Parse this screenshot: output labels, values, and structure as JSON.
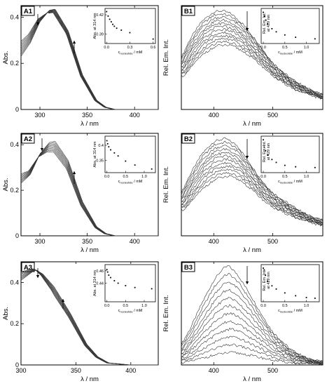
{
  "figure": {
    "chart_data": [
      {
        "panel_label": "A1",
        "type": "line",
        "xlabel": "λ / nm",
        "ylabel": "Abs.",
        "xlim": [
          280,
          425
        ],
        "ylim": [
          0,
          0.45
        ],
        "xticks": [
          300,
          350,
          400
        ],
        "yticks": [
          0,
          0.2,
          0.4
        ],
        "peak": 316,
        "top": [
          0.435,
          0.42
        ],
        "curve_count": 10,
        "series": [
          {
            "x": [
              280,
              290,
              300,
              310,
              316,
              330,
              345,
              360,
              370,
              380,
              400,
              425
            ],
            "y": [
              0.23,
              0.29,
              0.38,
              0.43,
              0.435,
              0.34,
              0.15,
              0.04,
              0.01,
              0.0,
              0.0,
              0.0
            ]
          }
        ],
        "inset": {
          "ylabel": "Abs. at 314 nm",
          "xlabel": "c nucleotide / mM",
          "xlim": [
            -0.02,
            0.63
          ],
          "ylim": [
            0.375,
            0.43
          ],
          "xticks": [
            0.0,
            0.3,
            0.6
          ],
          "yticks": [
            0.39,
            0.42
          ],
          "points": [
            [
              0.0,
              0.425
            ],
            [
              0.02,
              0.418
            ],
            [
              0.04,
              0.413
            ],
            [
              0.06,
              0.409
            ],
            [
              0.08,
              0.405
            ],
            [
              0.1,
              0.402
            ],
            [
              0.13,
              0.399
            ],
            [
              0.19,
              0.396
            ],
            [
              0.3,
              0.392
            ],
            [
              0.6,
              0.382
            ]
          ]
        }
      },
      {
        "panel_label": "B1",
        "type": "line",
        "xlabel": "λ / nm",
        "ylabel": "Rel. Em. Int.",
        "xlim": [
          345,
          585
        ],
        "ylim": [
          0,
          1.0
        ],
        "xticks": [
          400,
          500
        ],
        "yticks": [],
        "peak": 415,
        "top": [
          0.95,
          0.62
        ],
        "curve_count": 12,
        "series": [
          {
            "x": [
              345,
              360,
              380,
              400,
              415,
              430,
              450,
              470,
              500,
              530,
              560,
              585
            ],
            "y": [
              0.5,
              0.68,
              0.85,
              0.94,
              0.95,
              0.92,
              0.82,
              0.68,
              0.45,
              0.3,
              0.2,
              0.14
            ]
          }
        ],
        "inset": {
          "ylabel": "Rel. Em. Int. at 429 nm",
          "xlabel": "c nucleotide / mM",
          "xlim": [
            -0.05,
            1.3
          ],
          "ylim": [
            0.55,
            1.0
          ],
          "xticks": [
            0.0,
            0.5,
            1.0
          ],
          "yticks": [],
          "points": [
            [
              0.0,
              0.95
            ],
            [
              0.03,
              0.9
            ],
            [
              0.06,
              0.85
            ],
            [
              0.1,
              0.8
            ],
            [
              0.2,
              0.74
            ],
            [
              0.3,
              0.7
            ],
            [
              0.5,
              0.66
            ],
            [
              0.75,
              0.63
            ],
            [
              1.2,
              0.61
            ]
          ]
        }
      },
      {
        "panel_label": "A2",
        "type": "line",
        "xlabel": "λ / nm",
        "ylabel": "Abs.",
        "xlim": [
          280,
          425
        ],
        "ylim": [
          0,
          0.45
        ],
        "xticks": [
          300,
          350,
          400
        ],
        "yticks": [
          0,
          0.2,
          0.4
        ],
        "peak": 316,
        "top": [
          0.415,
          0.37
        ],
        "curve_count": 9,
        "series": [
          {
            "x": [
              280,
              290,
              300,
              310,
              316,
              330,
              345,
              360,
              370,
              380,
              400,
              425
            ],
            "y": [
              0.23,
              0.27,
              0.36,
              0.41,
              0.415,
              0.33,
              0.15,
              0.04,
              0.01,
              0.0,
              0.0,
              0.0
            ]
          }
        ],
        "inset": {
          "ylabel": "Abs. at 314 nm",
          "xlabel": "c nucleotide / mM",
          "xlim": [
            -0.05,
            1.3
          ],
          "ylim": [
            0.31,
            0.43
          ],
          "xticks": [
            0.0,
            0.5,
            1.0
          ],
          "yticks": [
            0.35,
            0.4
          ],
          "points": [
            [
              0.0,
              0.415
            ],
            [
              0.02,
              0.405
            ],
            [
              0.05,
              0.395
            ],
            [
              0.1,
              0.385
            ],
            [
              0.2,
              0.375
            ],
            [
              0.3,
              0.365
            ],
            [
              0.5,
              0.348
            ],
            [
              0.75,
              0.335
            ],
            [
              1.2,
              0.322
            ]
          ]
        }
      },
      {
        "panel_label": "B2",
        "type": "line",
        "xlabel": "λ / nm",
        "ylabel": "Rel. Em. Int.",
        "xlim": [
          345,
          585
        ],
        "ylim": [
          0,
          1.0
        ],
        "xticks": [
          400,
          500
        ],
        "yticks": [],
        "peak": 420,
        "top": [
          0.95,
          0.58
        ],
        "curve_count": 12,
        "series": [
          {
            "x": [
              345,
              360,
              380,
              400,
              420,
              440,
              460,
              480,
              500,
              530,
              560,
              585
            ],
            "y": [
              0.42,
              0.6,
              0.8,
              0.92,
              0.95,
              0.88,
              0.72,
              0.55,
              0.42,
              0.3,
              0.2,
              0.15
            ]
          }
        ],
        "inset": {
          "ylabel": "Rel. Em. Int. at 429 nm",
          "xlabel": "c nucleotide / mM",
          "xlim": [
            -0.05,
            1.3
          ],
          "ylim": [
            0.5,
            1.0
          ],
          "xticks": [
            0.0,
            0.5,
            1.0
          ],
          "yticks": [],
          "points": [
            [
              0.0,
              0.95
            ],
            [
              0.02,
              0.85
            ],
            [
              0.05,
              0.8
            ],
            [
              0.1,
              0.74
            ],
            [
              0.2,
              0.68
            ],
            [
              0.3,
              0.64
            ],
            [
              0.5,
              0.6
            ],
            [
              0.75,
              0.58
            ],
            [
              1.2,
              0.57
            ]
          ]
        }
      },
      {
        "panel_label": "A3",
        "type": "line",
        "xlabel": "λ / nm",
        "ylabel": "Abs.",
        "xlim": [
          300,
          425
        ],
        "ylim": [
          0,
          0.5
        ],
        "xticks": [
          300,
          350,
          400
        ],
        "yticks": [
          0,
          0.2,
          0.4
        ],
        "peak": 314,
        "top": [
          0.46,
          0.43
        ],
        "curve_count": 9,
        "series": [
          {
            "x": [
              300,
              305,
              310,
              314,
              320,
              330,
              345,
              360,
              370,
              380,
              400,
              425
            ],
            "y": [
              0.41,
              0.43,
              0.45,
              0.46,
              0.44,
              0.38,
              0.25,
              0.1,
              0.04,
              0.01,
              0.0,
              0.0
            ]
          }
        ],
        "inset": {
          "ylabel": "Abs. at 314 nm",
          "xlabel": "c nucleotide / mM",
          "xlim": [
            -0.05,
            1.3
          ],
          "ylim": [
            0.41,
            0.47
          ],
          "xticks": [
            0.0,
            0.5,
            1.0
          ],
          "yticks": [
            0.44,
            0.46
          ],
          "points": [
            [
              0.0,
              0.462
            ],
            [
              0.02,
              0.458
            ],
            [
              0.05,
              0.453
            ],
            [
              0.1,
              0.449
            ],
            [
              0.2,
              0.444
            ],
            [
              0.3,
              0.44
            ],
            [
              0.5,
              0.436
            ],
            [
              0.75,
              0.433
            ],
            [
              1.2,
              0.431
            ]
          ]
        }
      },
      {
        "panel_label": "B3",
        "type": "line",
        "xlabel": "λ / nm",
        "ylabel": "Rel. Em. Int.",
        "xlim": [
          345,
          585
        ],
        "ylim": [
          0,
          1.0
        ],
        "xticks": [
          400,
          500
        ],
        "yticks": [],
        "peak": 425,
        "top": [
          0.96,
          0.12
        ],
        "curve_count": 12,
        "series": [
          {
            "x": [
              345,
              360,
              380,
              400,
              415,
              425,
              440,
              460,
              480,
              500,
              530,
              560,
              585
            ],
            "y": [
              0.2,
              0.35,
              0.6,
              0.82,
              0.93,
              0.96,
              0.88,
              0.7,
              0.5,
              0.32,
              0.15,
              0.06,
              0.03
            ]
          }
        ],
        "inset": {
          "ylabel": "Rel. Em. Int. at 429 nm",
          "xlabel": "c nucleotide / mM",
          "xlim": [
            -0.05,
            1.3
          ],
          "ylim": [
            0.0,
            1.05
          ],
          "xticks": [
            0.0,
            0.5,
            1.0
          ],
          "yticks": [],
          "points": [
            [
              0.0,
              0.95
            ],
            [
              0.02,
              0.9
            ],
            [
              0.05,
              0.75
            ],
            [
              0.1,
              0.58
            ],
            [
              0.2,
              0.45
            ],
            [
              0.3,
              0.36
            ],
            [
              0.5,
              0.25
            ],
            [
              0.75,
              0.17
            ],
            [
              1.0,
              0.12
            ],
            [
              1.2,
              0.1
            ]
          ]
        }
      }
    ]
  }
}
